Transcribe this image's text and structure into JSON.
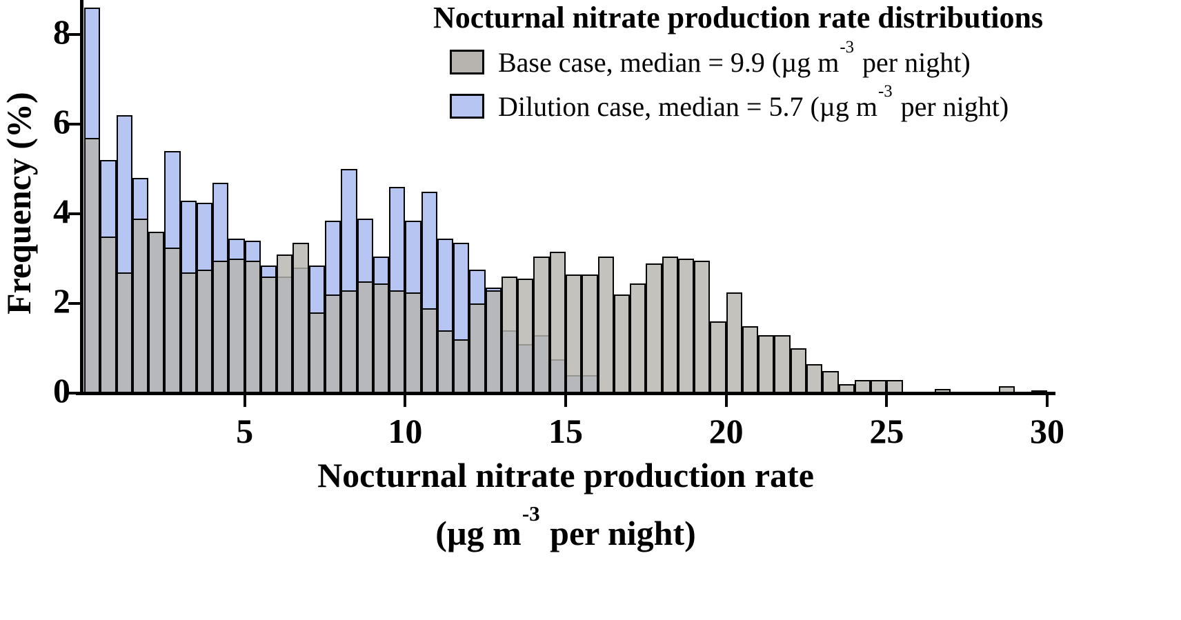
{
  "title": "Nocturnal nitrate production rate distributions",
  "legend": [
    {
      "series": "base",
      "label_prefix": "Base case, median = 9.9 (µg m",
      "sup": "-3",
      "label_suffix": " per night)",
      "color": "#b7b4af"
    },
    {
      "series": "dilution",
      "label_prefix": "Dilution case, median = 5.7 (µg m",
      "sup": "-3",
      "label_suffix": " per night)",
      "color": "#b7c5f2"
    }
  ],
  "axes": {
    "y_label": "Frequency (%)",
    "x_label_line1": "Nocturnal nitrate production rate",
    "x_label_line2_prefix": "(µg m",
    "x_label_sup": "-3",
    "x_label_line2_suffix": " per night)",
    "x_ticks": [
      5,
      10,
      15,
      20,
      25,
      30
    ],
    "y_ticks": [
      0,
      2,
      4,
      6,
      8
    ]
  },
  "chart_data": {
    "type": "bar",
    "subtype": "overlapping-histogram",
    "title": "Nocturnal nitrate production rate distributions",
    "xlabel": "Nocturnal nitrate production rate (µg m-3 per night)",
    "ylabel": "Frequency (%)",
    "bin_width": 0.5,
    "x_start": 0,
    "xlim": [
      0,
      30
    ],
    "ylim": [
      0,
      8.65
    ],
    "grid": false,
    "legend_position": "top",
    "series": [
      {
        "name": "Dilution case",
        "median": 5.7,
        "color": "#b7c5f2",
        "overlay_alpha": 1,
        "values": [
          8.6,
          5.2,
          6.2,
          4.8,
          3.6,
          5.4,
          4.3,
          4.25,
          4.7,
          3.45,
          3.4,
          2.85,
          2.6,
          2.8,
          2.85,
          3.85,
          5.0,
          3.9,
          3.05,
          4.6,
          3.85,
          4.5,
          3.45,
          3.35,
          2.75,
          2.35,
          1.4,
          1.1,
          1.3,
          0.75,
          0.4,
          0.4,
          0,
          0,
          0,
          0,
          0,
          0,
          0,
          0,
          0,
          0,
          0,
          0,
          0,
          0,
          0,
          0,
          0,
          0,
          0,
          0,
          0,
          0,
          0,
          0,
          0,
          0,
          0,
          0
        ]
      },
      {
        "name": "Base case",
        "median": 9.9,
        "color": "#b7b4af",
        "overlay_alpha": 0.82,
        "values": [
          5.7,
          3.5,
          2.7,
          3.9,
          3.6,
          3.25,
          2.7,
          2.75,
          2.95,
          3.0,
          2.95,
          2.6,
          3.1,
          3.35,
          1.8,
          2.2,
          2.3,
          2.5,
          2.45,
          2.3,
          2.25,
          1.9,
          1.4,
          1.2,
          2.0,
          2.3,
          2.6,
          2.55,
          3.05,
          3.15,
          2.65,
          2.65,
          3.05,
          2.2,
          2.45,
          2.9,
          3.05,
          3.0,
          2.95,
          1.6,
          2.25,
          1.5,
          1.3,
          1.3,
          1.0,
          0.65,
          0.5,
          0.2,
          0.3,
          0.3,
          0.3,
          0,
          0,
          0.1,
          0,
          0,
          0,
          0.15,
          0,
          0.05
        ]
      }
    ]
  }
}
